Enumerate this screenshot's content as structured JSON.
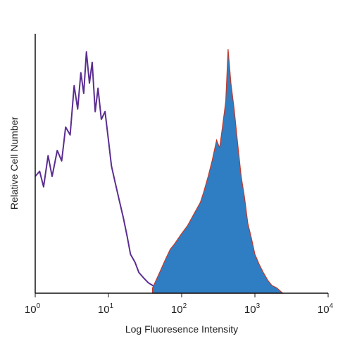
{
  "chart_data": {
    "type": "area",
    "xlabel": "Log Fluoresence Intensity",
    "ylabel": "Relative Cell Number",
    "x_scale": "log",
    "xlim": [
      1,
      10000
    ],
    "ylim": [
      0,
      100
    ],
    "grid": false,
    "x_ticks": [
      {
        "base": "10",
        "exp": "0"
      },
      {
        "base": "10",
        "exp": "1"
      },
      {
        "base": "10",
        "exp": "2"
      },
      {
        "base": "10",
        "exp": "3"
      },
      {
        "base": "10",
        "exp": "4"
      }
    ],
    "series": [
      {
        "style": "outline",
        "color": "#5a2d91",
        "x": [
          1,
          1.15,
          1.3,
          1.5,
          1.7,
          2,
          2.3,
          2.6,
          3,
          3.4,
          3.8,
          4.2,
          4.6,
          5,
          5.5,
          6,
          6.6,
          7.2,
          8,
          9,
          10,
          11,
          12.5,
          14,
          16,
          18,
          20,
          23,
          26,
          30,
          35,
          40,
          45,
          50
        ],
        "y": [
          45,
          47,
          41,
          53,
          45,
          55,
          51,
          64,
          61,
          80,
          71,
          85,
          77,
          93,
          81,
          89,
          70,
          79,
          67,
          70,
          59,
          49,
          42,
          36,
          29,
          22,
          15,
          12,
          8,
          6,
          4,
          3,
          2,
          1
        ]
      },
      {
        "style": "filled",
        "color": "#2f7ec3",
        "edge_color": "#c0392b",
        "x": [
          40,
          50,
          60,
          70,
          80,
          100,
          120,
          150,
          180,
          200,
          230,
          260,
          300,
          330,
          360,
          400,
          430,
          470,
          520,
          580,
          650,
          720,
          800,
          900,
          1000,
          1150,
          1300,
          1500,
          1700,
          2000,
          2400
        ],
        "y": [
          2,
          8,
          13,
          17,
          19,
          23,
          26,
          31,
          35,
          39,
          45,
          51,
          59,
          56,
          64,
          74,
          94,
          81,
          71,
          58,
          45,
          37,
          27,
          21,
          15,
          11,
          8,
          5,
          3,
          2,
          0
        ]
      }
    ]
  }
}
